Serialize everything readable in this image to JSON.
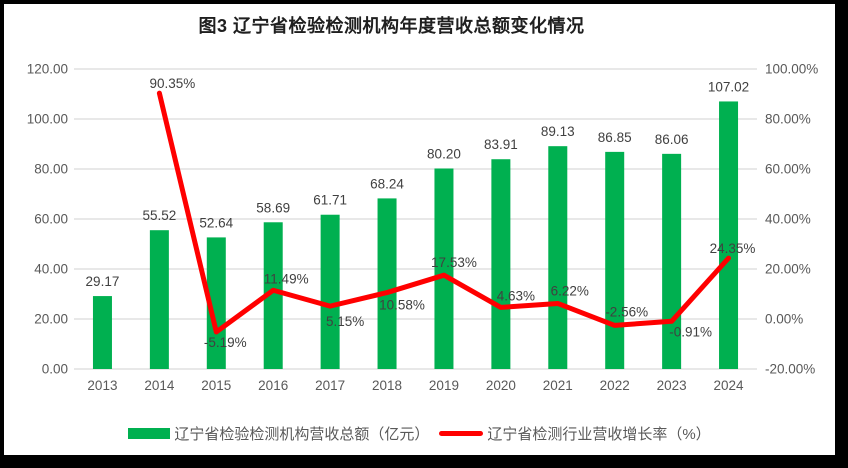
{
  "title": "图3 辽宁省检验检测机构年度营收总额变化情况",
  "legend": [
    {
      "label": "辽宁省检验检测机构营收总额（亿元）",
      "swatch": "bar",
      "color": "#00B050"
    },
    {
      "label": "辽宁省检测行业营收增长率（%）",
      "swatch": "line",
      "color": "#FF0000"
    }
  ],
  "colors": {
    "bar": "#00B050",
    "line": "#FF0000",
    "grid": "#D9D9D9",
    "axis_text": "#595959",
    "data_label": "#404040",
    "frame": "#000000"
  },
  "chart_data": {
    "type": "combo",
    "categories": [
      "2013",
      "2014",
      "2015",
      "2016",
      "2017",
      "2018",
      "2019",
      "2020",
      "2021",
      "2022",
      "2023",
      "2024"
    ],
    "series": [
      {
        "name": "辽宁省检验检测机构营收总额（亿元）",
        "type": "bar",
        "axis": "left",
        "color": "#00B050",
        "values": [
          29.17,
          55.52,
          52.64,
          58.69,
          61.71,
          68.24,
          80.2,
          83.91,
          89.13,
          86.85,
          86.06,
          107.02
        ],
        "labels": [
          "29.17",
          "55.52",
          "52.64",
          "58.69",
          "61.71",
          "68.24",
          "80.20",
          "83.91",
          "89.13",
          "86.85",
          "86.06",
          "107.02"
        ]
      },
      {
        "name": "辽宁省检测行业营收增长率（%）",
        "type": "line",
        "axis": "right",
        "color": "#FF0000",
        "values": [
          null,
          90.35,
          -5.19,
          11.49,
          5.15,
          10.58,
          17.53,
          4.63,
          6.22,
          -2.56,
          -0.91,
          24.35
        ],
        "labels": [
          null,
          "90.35%",
          "-5.19%",
          "11.49%",
          "5.15%",
          "10.58%",
          "17.53%",
          "4.63%",
          "6.22%",
          "-2.56%",
          "-0.91%",
          "24.35%"
        ]
      }
    ],
    "left_axis": {
      "min": 0,
      "max": 120,
      "step": 20,
      "tick_labels_top_to_bottom": [
        "120.00",
        "100.00",
        "80.00",
        "60.00",
        "40.00",
        "20.00",
        "0.00"
      ]
    },
    "right_axis": {
      "min": -20,
      "max": 100,
      "step": 20,
      "tick_labels_top_to_bottom": [
        "100.00%",
        "80.00%",
        "60.00%",
        "40.00%",
        "20.00%",
        "0.00%",
        "-20.00%"
      ]
    },
    "grid": true,
    "legend_position": "bottom",
    "line_label_offsets": [
      null,
      [
        13,
        -5
      ],
      [
        9,
        15
      ],
      [
        13,
        -7
      ],
      [
        15,
        20
      ],
      [
        15,
        17
      ],
      [
        10,
        -8
      ],
      [
        15,
        -7
      ],
      [
        12,
        -8
      ],
      [
        12,
        -9
      ],
      [
        19,
        15
      ],
      [
        4,
        -5
      ]
    ]
  }
}
